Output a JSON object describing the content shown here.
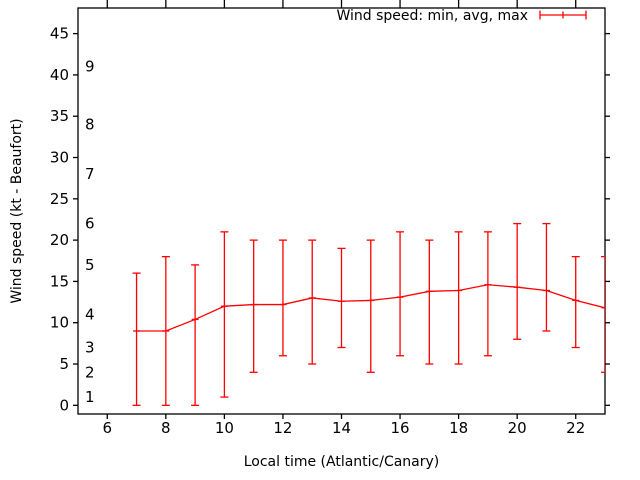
{
  "chart_data": {
    "type": "line",
    "subtype": "errorbars-min-avg-max",
    "title": "",
    "legend_label": "Wind speed: min, avg, max",
    "legend_position": "top-right-inside",
    "xlabel": "Local time (Atlantic/Canary)",
    "ylabel": "Wind speed (kt - Beaufort)",
    "grid": false,
    "xlim": [
      5,
      23
    ],
    "ylim": [
      -1.05,
      48.1
    ],
    "x_tick_values": [
      6,
      8,
      10,
      12,
      14,
      16,
      18,
      20,
      22
    ],
    "y_tick_values": [
      0,
      5,
      10,
      15,
      20,
      25,
      30,
      35,
      40,
      45
    ],
    "beaufort_scale_labels": [
      {
        "label": "1",
        "kt": 1
      },
      {
        "label": "2",
        "kt": 4
      },
      {
        "label": "3",
        "kt": 7
      },
      {
        "label": "4",
        "kt": 11
      },
      {
        "label": "5",
        "kt": 17
      },
      {
        "label": "6",
        "kt": 22
      },
      {
        "label": "7",
        "kt": 28
      },
      {
        "label": "8",
        "kt": 34
      },
      {
        "label": "9",
        "kt": 41
      }
    ],
    "series": [
      {
        "name": "Wind speed: min, avg, max",
        "color": "#ff0000",
        "points": [
          {
            "hour": 7,
            "min": 0,
            "avg": 9.0,
            "max": 16
          },
          {
            "hour": 8,
            "min": 0,
            "avg": 9.0,
            "max": 18
          },
          {
            "hour": 9,
            "min": 0,
            "avg": 10.4,
            "max": 17
          },
          {
            "hour": 10,
            "min": 1,
            "avg": 12.0,
            "max": 21
          },
          {
            "hour": 11,
            "min": 4,
            "avg": 12.2,
            "max": 20
          },
          {
            "hour": 12,
            "min": 6,
            "avg": 12.2,
            "max": 20
          },
          {
            "hour": 13,
            "min": 5,
            "avg": 13.0,
            "max": 20
          },
          {
            "hour": 14,
            "min": 7,
            "avg": 12.6,
            "max": 19
          },
          {
            "hour": 15,
            "min": 4,
            "avg": 12.7,
            "max": 20
          },
          {
            "hour": 16,
            "min": 6,
            "avg": 13.1,
            "max": 21
          },
          {
            "hour": 17,
            "min": 5,
            "avg": 13.8,
            "max": 20
          },
          {
            "hour": 18,
            "min": 5,
            "avg": 13.9,
            "max": 21
          },
          {
            "hour": 19,
            "min": 6,
            "avg": 14.6,
            "max": 21
          },
          {
            "hour": 20,
            "min": 8,
            "avg": 14.3,
            "max": 22
          },
          {
            "hour": 21,
            "min": 9,
            "avg": 13.9,
            "max": 22
          },
          {
            "hour": 22,
            "min": 7,
            "avg": 12.7,
            "max": 18
          },
          {
            "hour": 23,
            "min": 4,
            "avg": 11.8,
            "max": 18
          }
        ]
      }
    ],
    "colors": {
      "series": "#ff0000",
      "axis": "#000000",
      "background": "#ffffff"
    }
  }
}
